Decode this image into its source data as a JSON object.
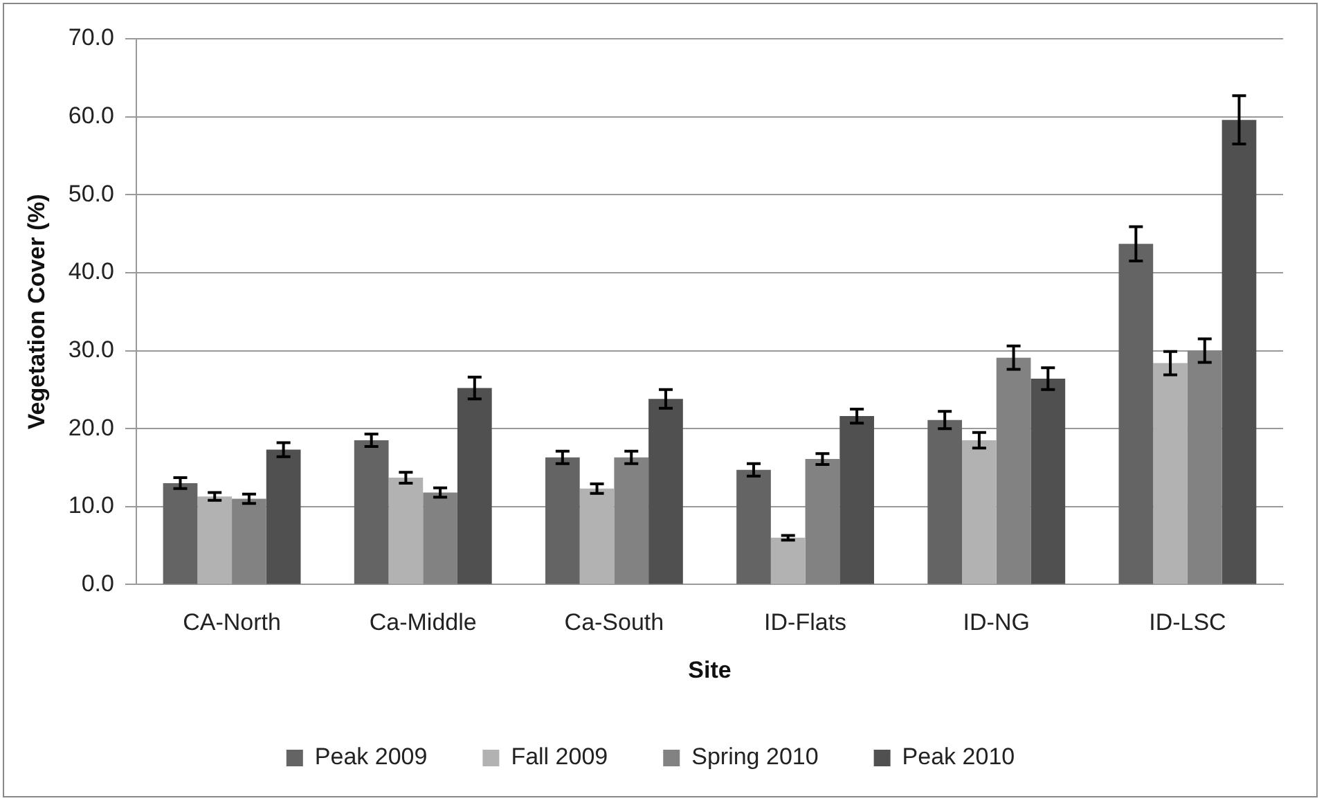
{
  "chart_data": {
    "type": "bar",
    "xlabel": "Site",
    "ylabel": "Vegetation Cover (%)",
    "categories": [
      "CA-North",
      "Ca-Middle",
      "Ca-South",
      "ID-Flats",
      "ID-NG",
      "ID-LSC"
    ],
    "series": [
      {
        "name": "Peak 2009",
        "color": "#646464",
        "values": [
          13.0,
          18.5,
          16.3,
          14.7,
          21.1,
          43.7
        ],
        "errors": [
          0.7,
          0.8,
          0.8,
          0.8,
          1.1,
          2.2
        ]
      },
      {
        "name": "Fall 2009",
        "color": "#b2b2b2",
        "values": [
          11.3,
          13.7,
          12.3,
          6.0,
          18.5,
          28.4
        ],
        "errors": [
          0.5,
          0.7,
          0.6,
          0.3,
          1.0,
          1.5
        ]
      },
      {
        "name": "Spring 2010",
        "color": "#828282",
        "values": [
          11.0,
          11.8,
          16.3,
          16.1,
          29.1,
          30.0
        ],
        "errors": [
          0.6,
          0.6,
          0.8,
          0.7,
          1.5,
          1.5
        ]
      },
      {
        "name": "Peak 2010",
        "color": "#505050",
        "values": [
          17.3,
          25.2,
          23.8,
          21.6,
          26.4,
          59.6
        ],
        "errors": [
          0.9,
          1.4,
          1.2,
          0.9,
          1.4,
          3.1
        ]
      }
    ],
    "ylim": [
      0,
      70
    ],
    "yticks": [
      {
        "value": 0,
        "label": "0.0"
      },
      {
        "value": 10,
        "label": "10.0"
      },
      {
        "value": 20,
        "label": "20.0"
      },
      {
        "value": 30,
        "label": "30.0"
      },
      {
        "value": 40,
        "label": "40.0"
      },
      {
        "value": 50,
        "label": "50.0"
      },
      {
        "value": 60,
        "label": "60.0"
      },
      {
        "value": 70,
        "label": "70.0"
      }
    ],
    "grid": "y",
    "legend": "bottom"
  }
}
